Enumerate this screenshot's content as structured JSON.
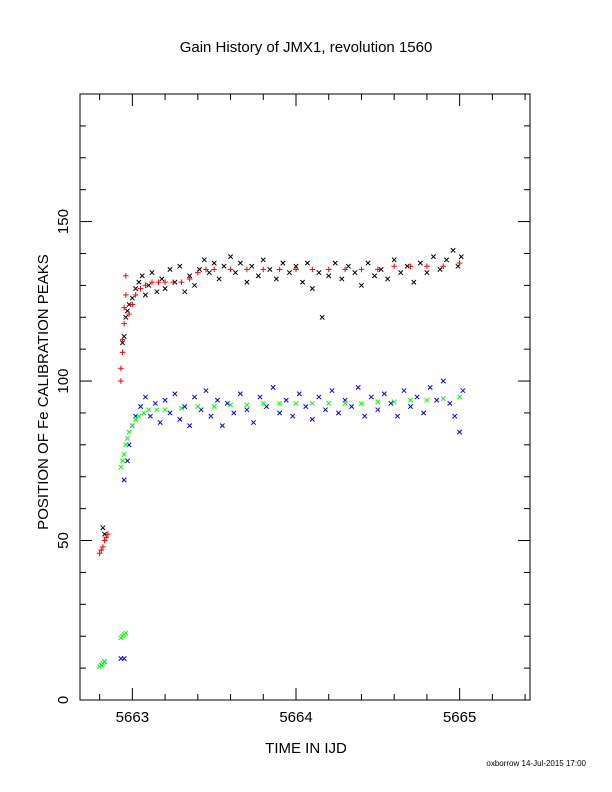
{
  "chart_data": {
    "type": "scatter",
    "title": "Gain History of JMX1, revolution 1560",
    "xlabel": "TIME IN IJD",
    "ylabel": "POSITION OF Fe CALIBRATION PEAKS",
    "xlim": [
      5662.68,
      5665.43
    ],
    "ylim": [
      0,
      190
    ],
    "x_ticks": [
      5663,
      5664,
      5665
    ],
    "y_ticks": [
      0,
      50,
      100,
      150
    ],
    "grid": false,
    "footer": "oxborrow 14-Jul-2015 17:00",
    "series": [
      {
        "marker": "x",
        "color": "#000000",
        "points": [
          [
            5662.82,
            54
          ],
          [
            5662.83,
            52
          ],
          [
            5662.94,
            112
          ],
          [
            5662.95,
            114
          ],
          [
            5662.96,
            120
          ],
          [
            5662.97,
            122
          ],
          [
            5662.98,
            124
          ],
          [
            5663.0,
            126
          ],
          [
            5663.02,
            129
          ],
          [
            5663.04,
            131
          ],
          [
            5663.06,
            133
          ],
          [
            5663.08,
            127
          ],
          [
            5663.1,
            130
          ],
          [
            5663.12,
            134
          ],
          [
            5663.15,
            128
          ],
          [
            5663.18,
            132
          ],
          [
            5663.2,
            129
          ],
          [
            5663.23,
            135
          ],
          [
            5663.26,
            131
          ],
          [
            5663.29,
            136
          ],
          [
            5663.32,
            128
          ],
          [
            5663.35,
            133
          ],
          [
            5663.38,
            130
          ],
          [
            5663.41,
            135
          ],
          [
            5663.44,
            138
          ],
          [
            5663.47,
            134
          ],
          [
            5663.5,
            137
          ],
          [
            5663.53,
            132
          ],
          [
            5663.56,
            136
          ],
          [
            5663.6,
            139
          ],
          [
            5663.63,
            134
          ],
          [
            5663.66,
            137
          ],
          [
            5663.7,
            131
          ],
          [
            5663.73,
            136
          ],
          [
            5663.77,
            133
          ],
          [
            5663.8,
            138
          ],
          [
            5663.84,
            135
          ],
          [
            5663.88,
            132
          ],
          [
            5663.92,
            137
          ],
          [
            5663.96,
            134
          ],
          [
            5664.0,
            136
          ],
          [
            5664.04,
            131
          ],
          [
            5664.07,
            137
          ],
          [
            5664.1,
            129
          ],
          [
            5664.14,
            134
          ],
          [
            5664.16,
            120
          ],
          [
            5664.2,
            133
          ],
          [
            5664.24,
            137
          ],
          [
            5664.28,
            132
          ],
          [
            5664.32,
            136
          ],
          [
            5664.36,
            134
          ],
          [
            5664.4,
            130
          ],
          [
            5664.44,
            137
          ],
          [
            5664.48,
            133
          ],
          [
            5664.52,
            135
          ],
          [
            5664.56,
            132
          ],
          [
            5664.6,
            138
          ],
          [
            5664.64,
            134
          ],
          [
            5664.68,
            136
          ],
          [
            5664.72,
            131
          ],
          [
            5664.76,
            137
          ],
          [
            5664.8,
            134
          ],
          [
            5664.84,
            139
          ],
          [
            5664.88,
            135
          ],
          [
            5664.92,
            138
          ],
          [
            5664.96,
            141
          ],
          [
            5664.99,
            136
          ],
          [
            5665.01,
            139
          ]
        ]
      },
      {
        "marker": "+",
        "color": "#ff0000",
        "points": [
          [
            5662.8,
            46
          ],
          [
            5662.81,
            47
          ],
          [
            5662.82,
            48
          ],
          [
            5662.83,
            50
          ],
          [
            5662.84,
            51
          ],
          [
            5662.85,
            52
          ],
          [
            5662.93,
            100
          ],
          [
            5662.93,
            104
          ],
          [
            5662.94,
            109
          ],
          [
            5662.94,
            113
          ],
          [
            5662.95,
            118
          ],
          [
            5662.95,
            123
          ],
          [
            5662.96,
            127
          ],
          [
            5662.96,
            133
          ],
          [
            5662.98,
            121
          ],
          [
            5663.0,
            124
          ],
          [
            5663.02,
            127
          ],
          [
            5663.05,
            129
          ],
          [
            5663.08,
            130
          ],
          [
            5663.12,
            131
          ],
          [
            5663.16,
            131
          ],
          [
            5663.2,
            131
          ],
          [
            5663.25,
            131
          ],
          [
            5663.3,
            131
          ],
          [
            5663.35,
            132
          ],
          [
            5663.4,
            134
          ],
          [
            5663.45,
            135
          ],
          [
            5663.5,
            135
          ],
          [
            5663.6,
            135
          ],
          [
            5663.7,
            135
          ],
          [
            5663.8,
            135
          ],
          [
            5663.9,
            135
          ],
          [
            5664.0,
            135
          ],
          [
            5664.1,
            135
          ],
          [
            5664.2,
            135
          ],
          [
            5664.3,
            135
          ],
          [
            5664.4,
            135
          ],
          [
            5664.5,
            135
          ],
          [
            5664.6,
            136
          ],
          [
            5664.7,
            136
          ],
          [
            5664.8,
            136
          ],
          [
            5664.9,
            136
          ],
          [
            5665.0,
            137
          ]
        ]
      },
      {
        "marker": "x",
        "color": "#0000ff",
        "points": [
          [
            5662.81,
            11
          ],
          [
            5662.83,
            12
          ],
          [
            5662.93,
            13
          ],
          [
            5662.95,
            13
          ],
          [
            5662.95,
            69
          ],
          [
            5662.97,
            75
          ],
          [
            5662.98,
            80
          ],
          [
            5663.0,
            86
          ],
          [
            5663.02,
            89
          ],
          [
            5663.05,
            92
          ],
          [
            5663.08,
            95
          ],
          [
            5663.11,
            89
          ],
          [
            5663.14,
            93
          ],
          [
            5663.17,
            87
          ],
          [
            5663.2,
            94
          ],
          [
            5663.23,
            90
          ],
          [
            5663.26,
            96
          ],
          [
            5663.29,
            88
          ],
          [
            5663.32,
            92
          ],
          [
            5663.35,
            86
          ],
          [
            5663.38,
            95
          ],
          [
            5663.42,
            91
          ],
          [
            5663.45,
            97
          ],
          [
            5663.48,
            89
          ],
          [
            5663.52,
            94
          ],
          [
            5663.55,
            86
          ],
          [
            5663.58,
            93
          ],
          [
            5663.62,
            90
          ],
          [
            5663.66,
            96
          ],
          [
            5663.7,
            91
          ],
          [
            5663.74,
            87
          ],
          [
            5663.78,
            95
          ],
          [
            5663.82,
            92
          ],
          [
            5663.86,
            98
          ],
          [
            5663.9,
            90
          ],
          [
            5663.94,
            94
          ],
          [
            5663.98,
            89
          ],
          [
            5664.02,
            96
          ],
          [
            5664.06,
            92
          ],
          [
            5664.1,
            88
          ],
          [
            5664.14,
            95
          ],
          [
            5664.18,
            91
          ],
          [
            5664.22,
            97
          ],
          [
            5664.26,
            90
          ],
          [
            5664.3,
            94
          ],
          [
            5664.34,
            92
          ],
          [
            5664.38,
            98
          ],
          [
            5664.42,
            89
          ],
          [
            5664.46,
            95
          ],
          [
            5664.5,
            91
          ],
          [
            5664.54,
            96
          ],
          [
            5664.58,
            93
          ],
          [
            5664.62,
            89
          ],
          [
            5664.66,
            97
          ],
          [
            5664.7,
            92
          ],
          [
            5664.74,
            95
          ],
          [
            5664.78,
            90
          ],
          [
            5664.82,
            98
          ],
          [
            5664.86,
            94
          ],
          [
            5664.9,
            100
          ],
          [
            5664.94,
            93
          ],
          [
            5664.97,
            89
          ],
          [
            5665.0,
            84
          ],
          [
            5665.02,
            97
          ]
        ]
      },
      {
        "marker": "x",
        "color": "#00ff00",
        "points": [
          [
            5662.8,
            10.5
          ],
          [
            5662.81,
            11
          ],
          [
            5662.82,
            11.5
          ],
          [
            5662.83,
            12
          ],
          [
            5662.93,
            19.5
          ],
          [
            5662.94,
            20
          ],
          [
            5662.95,
            20.5
          ],
          [
            5662.96,
            21
          ],
          [
            5662.93,
            73
          ],
          [
            5662.94,
            75
          ],
          [
            5662.95,
            77
          ],
          [
            5662.96,
            80
          ],
          [
            5662.97,
            82
          ],
          [
            5662.98,
            84
          ],
          [
            5663.0,
            86
          ],
          [
            5663.02,
            88
          ],
          [
            5663.04,
            89
          ],
          [
            5663.07,
            90
          ],
          [
            5663.1,
            91
          ],
          [
            5663.15,
            91
          ],
          [
            5663.2,
            91
          ],
          [
            5663.3,
            91.5
          ],
          [
            5663.4,
            92
          ],
          [
            5663.5,
            92
          ],
          [
            5663.6,
            92.5
          ],
          [
            5663.7,
            92.5
          ],
          [
            5663.8,
            93
          ],
          [
            5663.9,
            93
          ],
          [
            5664.0,
            93
          ],
          [
            5664.1,
            93
          ],
          [
            5664.2,
            93
          ],
          [
            5664.3,
            93
          ],
          [
            5664.4,
            93
          ],
          [
            5664.5,
            93.5
          ],
          [
            5664.6,
            93.5
          ],
          [
            5664.7,
            94
          ],
          [
            5664.8,
            94
          ],
          [
            5664.9,
            94.5
          ],
          [
            5665.0,
            95
          ]
        ]
      }
    ]
  }
}
